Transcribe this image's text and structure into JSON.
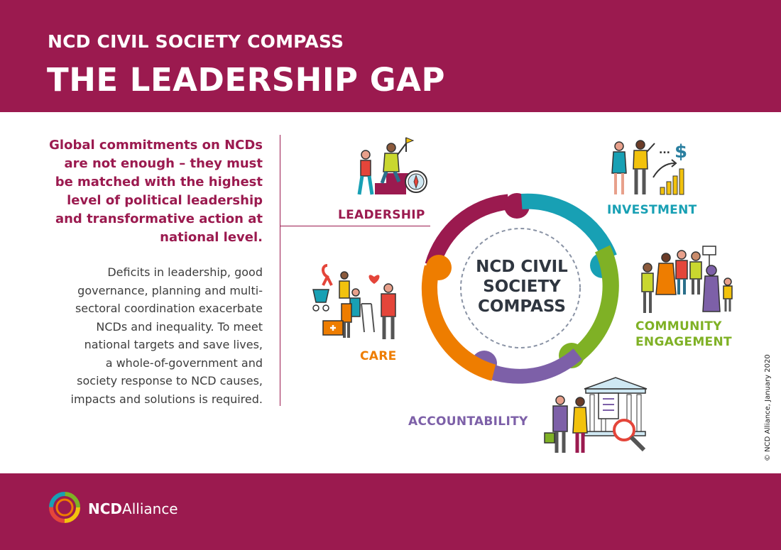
{
  "header": {
    "kicker": "NCD CIVIL SOCIETY COMPASS",
    "title": "THE LEADERSHIP GAP"
  },
  "intro": {
    "lead_lines": [
      "Global commitments on NCDs",
      "are not enough – they must",
      "be matched with the highest",
      "level of political leadership",
      "and transformative action at",
      "national level."
    ],
    "body_lines": [
      "Deficits in leadership, good",
      "governance, planning and multi-",
      "sectoral coordination exacerbate",
      "NCDs and inequality. To meet",
      "national targets and save lives,",
      "a whole-of-government and",
      "society response to NCD causes,",
      "impacts and solutions is required."
    ]
  },
  "compass": {
    "center_lines": [
      "NCD CIVIL",
      "SOCIETY",
      "COMPASS"
    ],
    "pillars": {
      "leadership": {
        "label": "LEADERSHIP",
        "color": "#9b1a4f"
      },
      "investment": {
        "label": "INVESTMENT",
        "color": "#18a0b4"
      },
      "community": {
        "label_lines": [
          "COMMUNITY",
          "ENGAGEMENT"
        ],
        "color": "#7fb125"
      },
      "accountability": {
        "label": "ACCOUNTABILITY",
        "color": "#7d60a8"
      },
      "care": {
        "label": "CARE",
        "color": "#ee7d00"
      }
    },
    "illustrations": {
      "leadership": "people-climbing-steps-with-flag-and-compass",
      "investment": "people-with-dollar-and-growth-chart",
      "community": "crowd-with-placard",
      "accountability": "people-with-briefcase-at-government-building-with-clipboard-and-magnifier",
      "care": "caregivers-with-pram-walker-and-medical-kit"
    }
  },
  "footer": {
    "logo_bold": "NCD",
    "logo_regular": "Alliance",
    "copyright": "© NCD Alliance, January 2020"
  },
  "colors": {
    "brand": "#9b1a4f"
  }
}
